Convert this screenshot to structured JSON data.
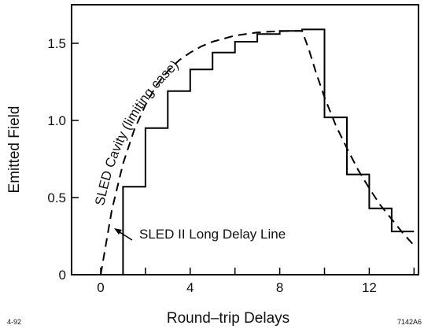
{
  "chart_data": {
    "type": "line",
    "title": "",
    "xlabel": "Round–trip Delays",
    "ylabel": "Emitted Field",
    "xlim": [
      -1.3,
      14.2
    ],
    "ylim": [
      0,
      1.75
    ],
    "x_ticks": [
      0,
      4,
      8,
      12
    ],
    "x_tick_labels": [
      "0",
      "4",
      "8",
      "12"
    ],
    "y_ticks": [
      0,
      0.5,
      1.0,
      1.5
    ],
    "y_tick_labels": [
      "0",
      "0.5",
      "1.0",
      "1.5"
    ],
    "grid": false,
    "series": [
      {
        "name": "SLED II Long Delay Line",
        "style": "solid-step",
        "color": "#000000",
        "x": [
          1,
          1,
          2,
          2,
          3,
          3,
          4,
          4,
          5,
          5,
          6,
          6,
          7,
          7,
          8,
          8,
          9,
          9,
          10,
          10,
          11,
          11,
          12,
          12,
          13,
          13,
          14
        ],
        "y": [
          0,
          0.57,
          0.57,
          0.95,
          0.95,
          1.19,
          1.19,
          1.33,
          1.33,
          1.44,
          1.44,
          1.51,
          1.51,
          1.56,
          1.56,
          1.58,
          1.58,
          1.59,
          1.59,
          1.02,
          1.02,
          0.65,
          0.65,
          0.43,
          0.43,
          0.28,
          0.28
        ]
      },
      {
        "name": "SLED Cavity (limiting case)",
        "style": "dashed",
        "color": "#000000",
        "x": [
          0,
          0.5,
          1,
          1.5,
          2,
          2.5,
          3,
          3.5,
          4,
          4.5,
          5,
          5.5,
          6,
          6.5,
          7,
          7.5,
          8,
          8.5,
          9,
          9.3,
          9.6,
          10,
          10.5,
          11,
          11.5,
          12,
          12.5,
          13,
          13.5,
          14
        ],
        "y": [
          0,
          0.42,
          0.72,
          0.94,
          1.1,
          1.23,
          1.32,
          1.39,
          1.44,
          1.48,
          1.51,
          1.53,
          1.55,
          1.56,
          1.57,
          1.575,
          1.578,
          1.58,
          1.58,
          1.46,
          1.32,
          1.15,
          0.97,
          0.82,
          0.68,
          0.56,
          0.45,
          0.36,
          0.27,
          0.19
        ]
      }
    ],
    "annotations": {
      "curve_label": "SLED Cavity (limiting case)",
      "arrow_label": "SLED II Long Delay Line"
    },
    "corner_left": "4-92",
    "corner_right": "7142A6"
  }
}
